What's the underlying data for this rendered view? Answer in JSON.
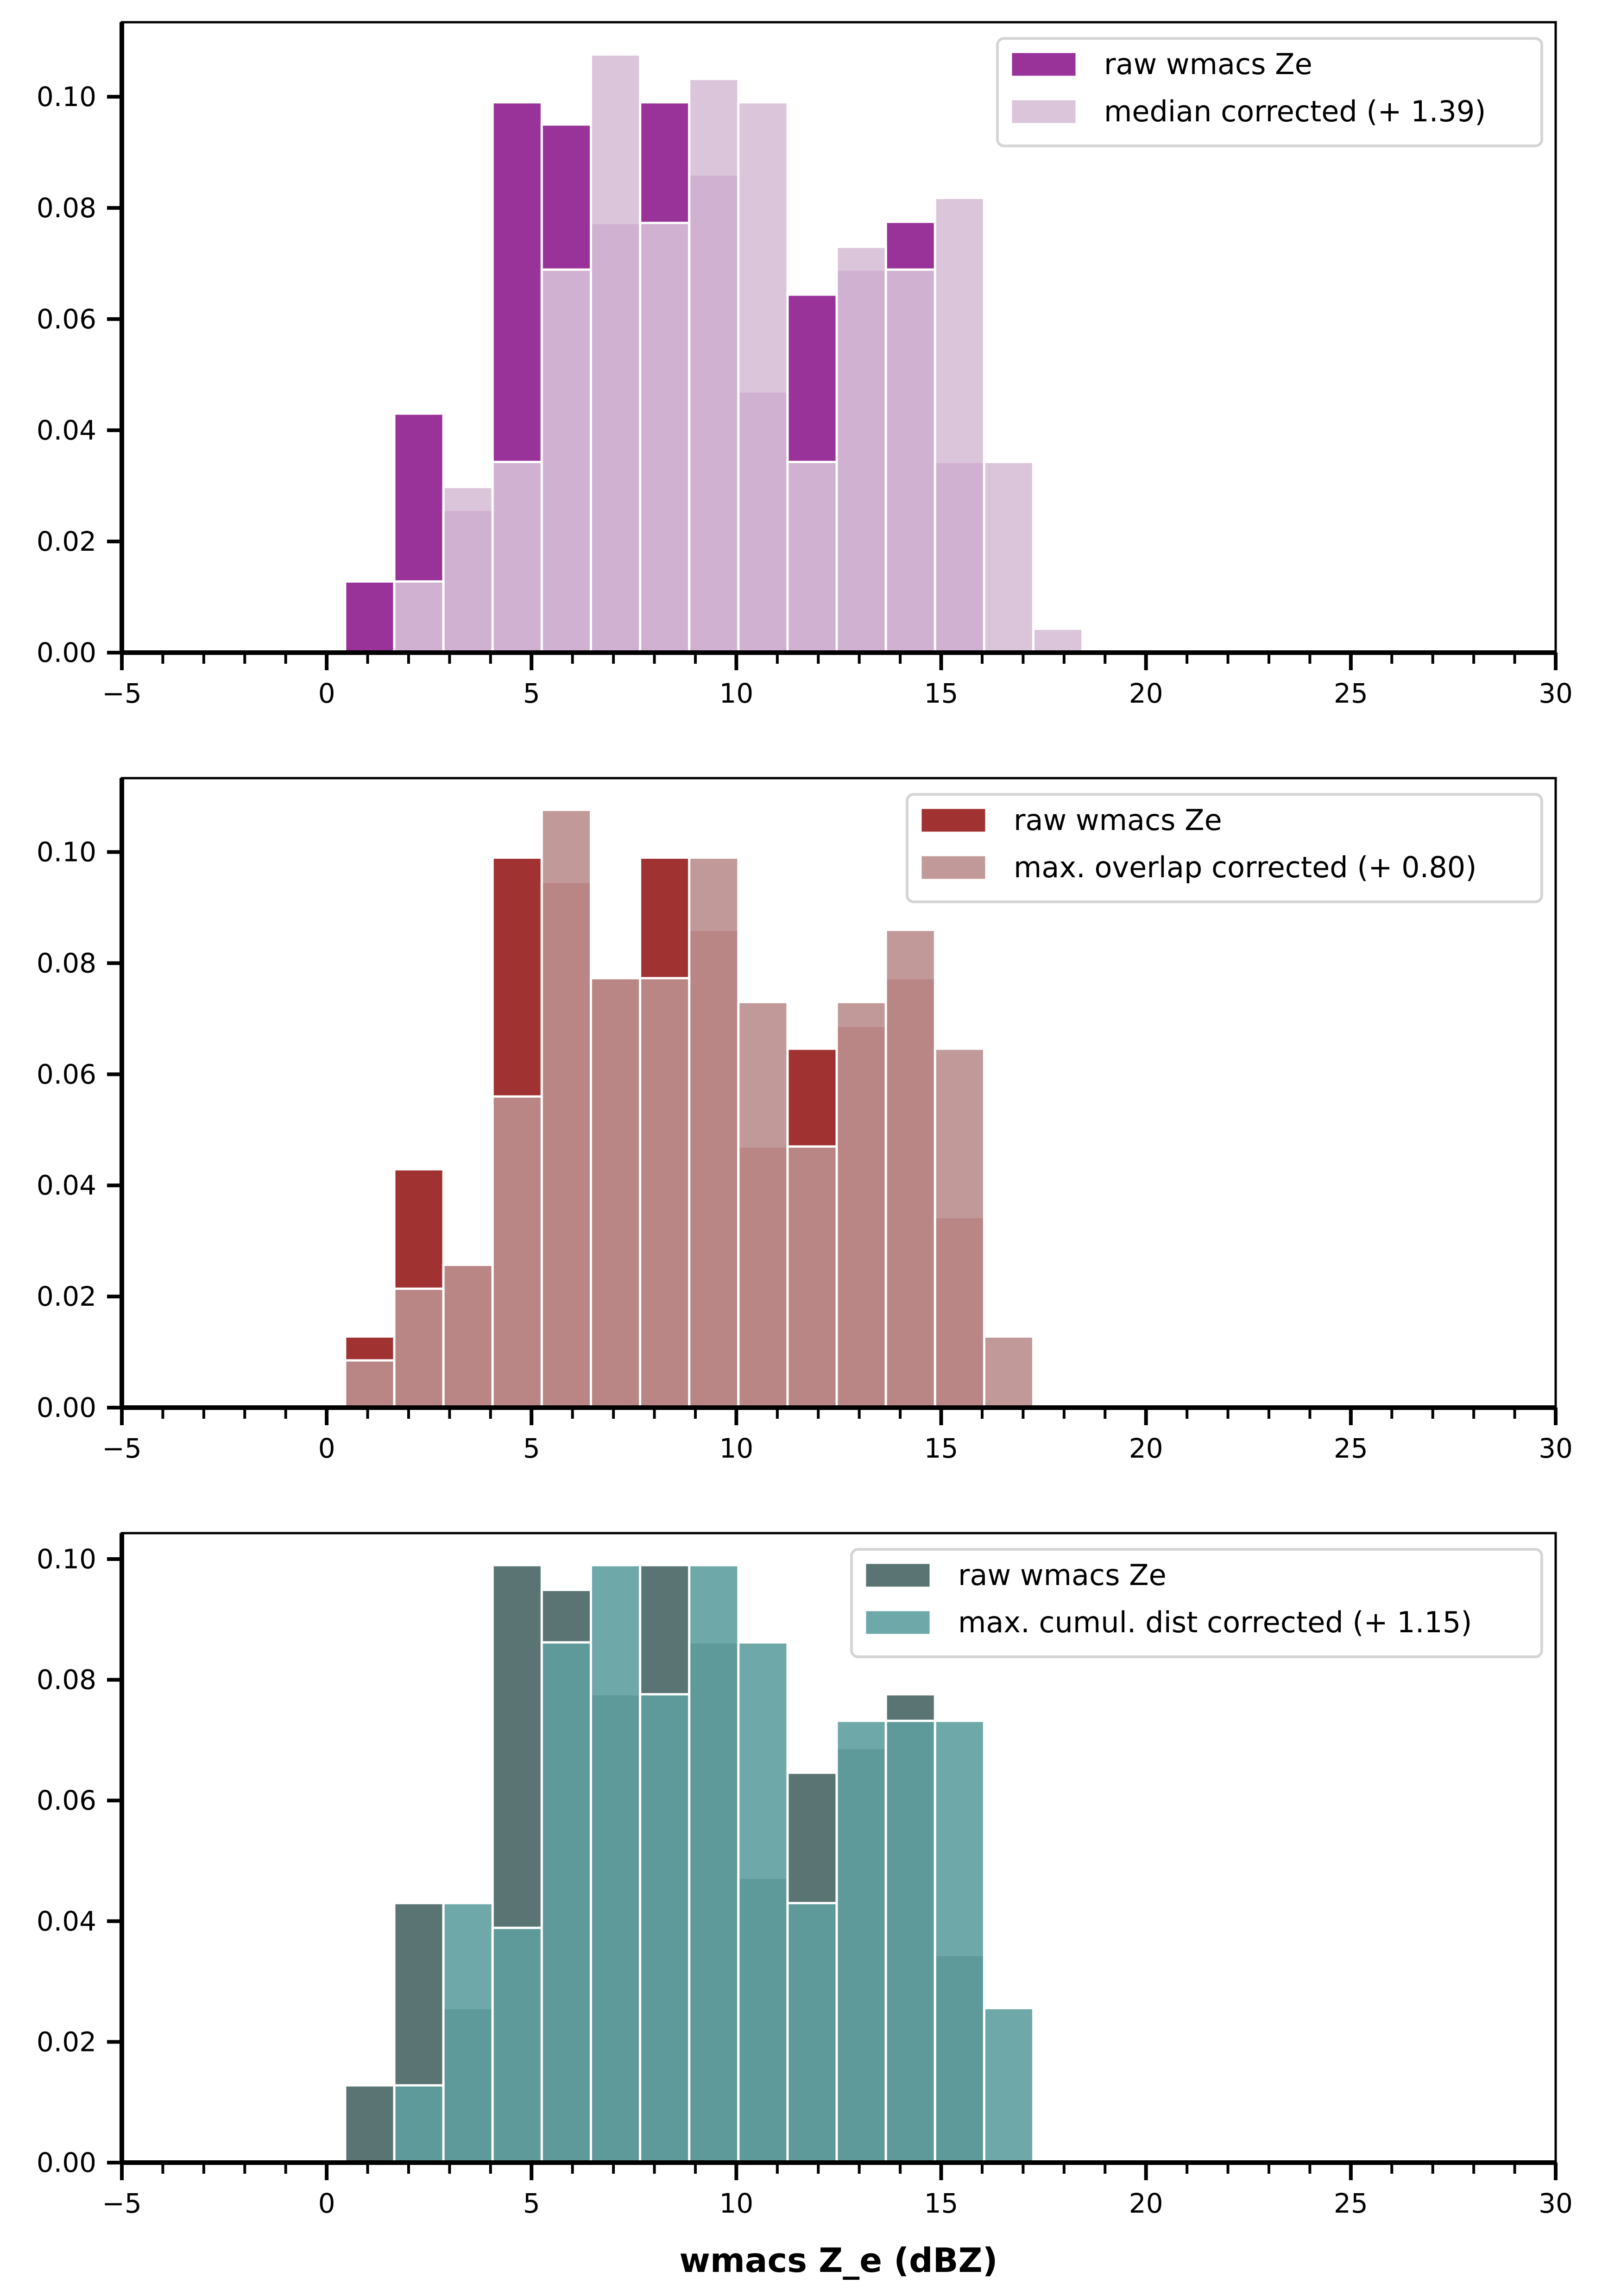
{
  "chart_data": [
    {
      "type": "bar",
      "subtype": "overlaid-histogram",
      "title": "",
      "xlabel": "",
      "ylabel": "",
      "xlim": [
        -5,
        30
      ],
      "ylim": [
        0,
        0.1134
      ],
      "x_ticks": [
        -5,
        0,
        5,
        10,
        15,
        20,
        25,
        30
      ],
      "x_tick_labels": [
        "−5",
        "0",
        "5",
        "10",
        "15",
        "20",
        "25",
        "30"
      ],
      "y_ticks": [
        0.0,
        0.02,
        0.04,
        0.06,
        0.08,
        0.1
      ],
      "y_tick_labels": [
        "0.00",
        "0.02",
        "0.04",
        "0.06",
        "0.08",
        "0.10"
      ],
      "grid": false,
      "legend_position": "top-right",
      "bin_start": 0.45,
      "bin_width": 1.2,
      "series": [
        {
          "name": "raw wmacs Ze",
          "color": "#993399",
          "alpha": 1.0,
          "values": [
            0.0128,
            0.043,
            0.0257,
            0.099,
            0.095,
            0.0773,
            0.099,
            0.086,
            0.047,
            0.0644,
            0.0689,
            0.0775,
            0.0343,
            0.0,
            0.0
          ]
        },
        {
          "name": "median corrected (+ 1.39)",
          "color": "#d7bfd7",
          "alpha": 0.9,
          "values": [
            0.0,
            0.0128,
            0.0298,
            0.0343,
            0.0689,
            0.1076,
            0.0773,
            0.1032,
            0.099,
            0.0343,
            0.073,
            0.0689,
            0.0818,
            0.0343,
            0.0043
          ]
        }
      ]
    },
    {
      "type": "bar",
      "subtype": "overlaid-histogram",
      "title": "",
      "xlabel": "",
      "ylabel": "",
      "xlim": [
        -5,
        30
      ],
      "ylim": [
        0,
        0.1133
      ],
      "x_ticks": [
        -5,
        0,
        5,
        10,
        15,
        20,
        25,
        30
      ],
      "x_tick_labels": [
        "−5",
        "0",
        "5",
        "10",
        "15",
        "20",
        "25",
        "30"
      ],
      "y_ticks": [
        0.0,
        0.02,
        0.04,
        0.06,
        0.08,
        0.1
      ],
      "y_tick_labels": [
        "0.00",
        "0.02",
        "0.04",
        "0.06",
        "0.08",
        "0.10"
      ],
      "grid": false,
      "legend_position": "top-right",
      "bin_start": 0.45,
      "bin_width": 1.2,
      "series": [
        {
          "name": "raw wmacs Ze",
          "color": "#a03232",
          "alpha": 1.0,
          "values": [
            0.0128,
            0.0429,
            0.0257,
            0.099,
            0.0946,
            0.0773,
            0.099,
            0.086,
            0.047,
            0.0646,
            0.0687,
            0.0773,
            0.0343,
            0.0,
            0.0
          ]
        },
        {
          "name": "max. overlap corrected (+ 0.80)",
          "color": "#bb8e8e",
          "alpha": 0.9,
          "values": [
            0.0085,
            0.0214,
            0.0257,
            0.056,
            0.1076,
            0.0773,
            0.0773,
            0.099,
            0.073,
            0.047,
            0.073,
            0.086,
            0.0646,
            0.0128,
            0.0
          ]
        }
      ]
    },
    {
      "type": "bar",
      "subtype": "overlaid-histogram",
      "title": "",
      "xlabel": "wmacs Z_e (dBZ)",
      "ylabel": "",
      "xlim": [
        -5,
        30
      ],
      "ylim": [
        0,
        0.1043
      ],
      "x_ticks": [
        -5,
        0,
        5,
        10,
        15,
        20,
        25,
        30
      ],
      "x_tick_labels": [
        "−5",
        "0",
        "5",
        "10",
        "15",
        "20",
        "25",
        "30"
      ],
      "y_ticks": [
        0.0,
        0.02,
        0.04,
        0.06,
        0.08,
        0.1
      ],
      "y_tick_labels": [
        "0.00",
        "0.02",
        "0.04",
        "0.06",
        "0.08",
        "0.10"
      ],
      "grid": false,
      "legend_position": "top-right",
      "bin_start": 0.45,
      "bin_width": 1.2,
      "series": [
        {
          "name": "raw wmacs Ze",
          "color": "#5a7473",
          "alpha": 1.0,
          "values": [
            0.0128,
            0.043,
            0.0256,
            0.099,
            0.0949,
            0.0776,
            0.099,
            0.0862,
            0.0472,
            0.0646,
            0.0687,
            0.0776,
            0.0344,
            0.0,
            0.0
          ]
        },
        {
          "name": "max. cumul. dist corrected (+ 1.15)",
          "color": "#5f9e9e",
          "alpha": 0.9,
          "values": [
            0.0,
            0.0128,
            0.043,
            0.0389,
            0.0862,
            0.099,
            0.0776,
            0.099,
            0.0862,
            0.043,
            0.0732,
            0.0732,
            0.0732,
            0.0256,
            0.0
          ]
        }
      ]
    }
  ]
}
